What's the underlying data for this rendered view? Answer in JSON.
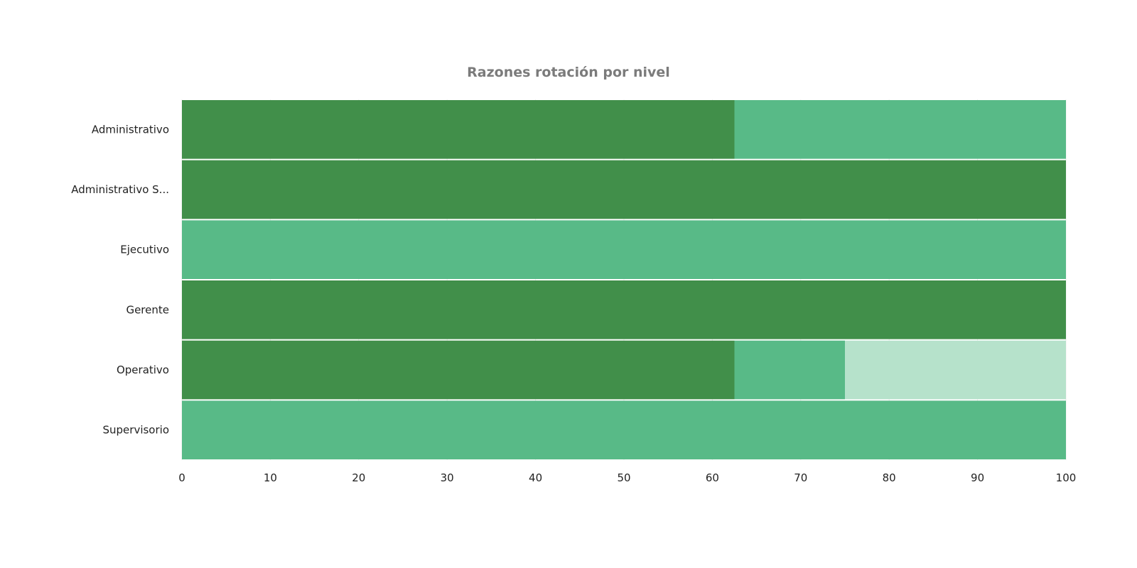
{
  "chart_data": {
    "type": "bar",
    "orientation": "horizontal",
    "stacked": true,
    "title": "Razones rotación por nivel",
    "xlabel": "",
    "ylabel": "",
    "categories": [
      "Administrativo",
      "Administrativo S...",
      "Ejecutivo",
      "Gerente",
      "Operativo",
      "Supervisorio"
    ],
    "series": [
      {
        "color": "#418f4a",
        "values": [
          62.5,
          100,
          0,
          100,
          62.5,
          0
        ]
      },
      {
        "color": "#58ba87",
        "values": [
          37.5,
          0,
          100,
          0,
          12.5,
          100
        ]
      },
      {
        "color": "#b6e2cb",
        "values": [
          0,
          0,
          0,
          0,
          25,
          0
        ]
      }
    ],
    "xlim": [
      0,
      100
    ],
    "xticks": [
      0,
      10,
      20,
      30,
      40,
      50,
      60,
      70,
      80,
      90,
      100
    ],
    "grid": true,
    "legend": "none"
  }
}
